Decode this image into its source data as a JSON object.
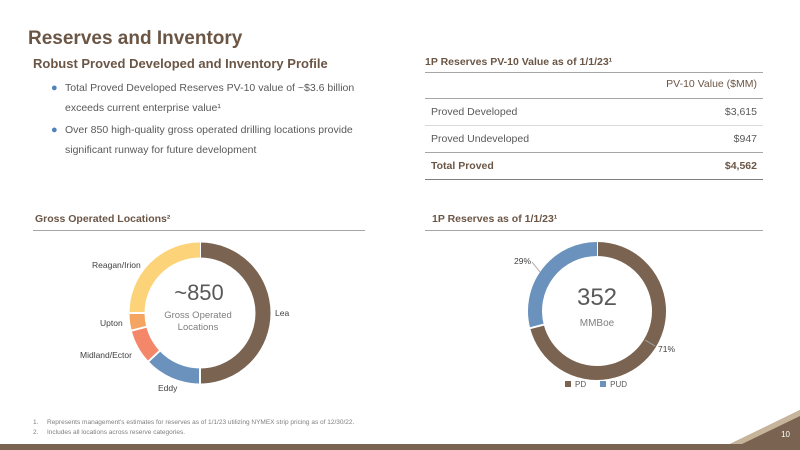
{
  "title": "Reserves and Inventory",
  "subtitle": "Robust Proved Developed and Inventory Profile",
  "bullets": [
    "Total Proved Developed Reserves PV-10 value of ~$3.6 billion exceeds current enterprise value¹",
    "Over 850 high-quality gross operated drilling locations provide significant runway for future development"
  ],
  "reserves_table": {
    "title": "1P Reserves PV-10 Value as of 1/1/23¹",
    "column_header": "PV-10 Value ($MM)",
    "rows": [
      {
        "label": "Proved Developed",
        "value": "$3,615"
      },
      {
        "label": "Proved Undeveloped",
        "value": "$947"
      },
      {
        "label": "Total Proved",
        "value": "$4,562"
      }
    ]
  },
  "colors": {
    "title_brown": "#6b5646",
    "lea": "#7a6350",
    "eddy": "#6a92bd",
    "midland_ector": "#f4876a",
    "upton": "#f4a561",
    "reagan_irion": "#fdd37a",
    "pd": "#7a6350",
    "pud": "#6a92bd",
    "footer_bar": "#7a6350"
  },
  "chart_data": [
    {
      "type": "pie",
      "title": "Gross Operated Locations²",
      "center_value": "~850",
      "center_label_line1": "Gross Operated",
      "center_label_line2": "Locations",
      "categories": [
        "Lea",
        "Eddy",
        "Midland/Ector",
        "Upton",
        "Reagan/Irion"
      ],
      "values": [
        50,
        13,
        8,
        4,
        25
      ]
    },
    {
      "type": "pie",
      "title": "1P Reserves as of 1/1/23¹",
      "center_value": "352",
      "center_unit": "MMBoe",
      "categories": [
        "PD",
        "PUD"
      ],
      "values": [
        71,
        29
      ],
      "data_labels": [
        "71%",
        "29%"
      ],
      "legend_position": "bottom"
    }
  ],
  "footnotes": [
    {
      "n": "1.",
      "text": "Represents management’s estimates for reserves as of 1/1/23 utilizing NYMEX strip pricing as of 12/30/22."
    },
    {
      "n": "2.",
      "text": "Includes all locations across reserve categories."
    }
  ],
  "page_number": "10"
}
